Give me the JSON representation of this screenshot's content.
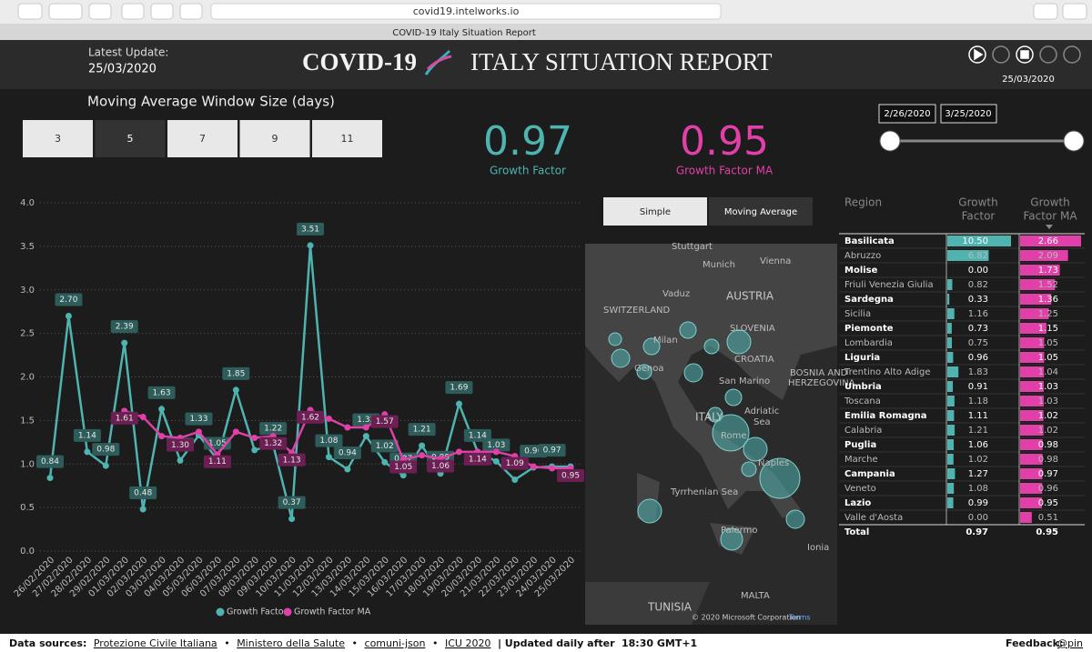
{
  "browser": {
    "url": "covid19.intelworks.io",
    "tab": "COVID-19 Italy Situation Report"
  },
  "header": {
    "update_label": "Latest Update:",
    "update_date": "25/03/2020",
    "title_left": "COVID-19",
    "title_right": "ITALY SITUATION REPORT",
    "play_date": "25/03/2020"
  },
  "controls": {
    "window_title": "Moving Average Window Size (days)",
    "window_options": [
      "3",
      "5",
      "7",
      "9",
      "11"
    ],
    "selected": 1
  },
  "kpis": [
    {
      "value": "0.97",
      "label": "Growth Factor"
    },
    {
      "value": "0.95",
      "label": "Growth Factor MA"
    }
  ],
  "date_range": {
    "start": "2/26/2020",
    "end": "3/25/2020"
  },
  "chart": {
    "type": "line",
    "categories": [
      "26/02/2020",
      "27/02/2020",
      "28/02/2020",
      "29/02/2020",
      "01/03/2020",
      "02/03/2020",
      "03/03/2020",
      "04/03/2020",
      "05/03/2020",
      "06/03/2020",
      "07/03/2020",
      "08/03/2020",
      "09/03/2020",
      "10/03/2020",
      "11/03/2020",
      "12/03/2020",
      "13/03/2020",
      "14/03/2020",
      "15/03/2020",
      "16/03/2020",
      "17/03/2020",
      "18/03/2020",
      "19/03/2020",
      "20/03/2020",
      "21/03/2020",
      "22/03/2020",
      "23/03/2020",
      "24/03/2020",
      "25/03/2020"
    ],
    "series": [
      {
        "name": "Growth Factor",
        "color": "#4fb3b0",
        "values": [
          0.84,
          2.7,
          1.14,
          0.98,
          2.39,
          0.48,
          1.63,
          1.04,
          1.33,
          1.05,
          1.85,
          1.16,
          1.22,
          0.37,
          3.51,
          1.08,
          0.94,
          1.32,
          1.02,
          0.87,
          1.21,
          0.89,
          1.69,
          1.14,
          1.03,
          0.82,
          0.96,
          0.97,
          0.97
        ],
        "value_labels": [
          "0.84",
          "2.70",
          "1.14",
          "0.98",
          "2.39",
          "0.48",
          "1.63",
          "1.04",
          "1.33",
          "1.05",
          "1.85",
          null,
          "1.22",
          "0.37",
          "3.51",
          "1.08",
          "0.94",
          "1.32",
          "1.02",
          "0.87",
          "1.21",
          "0.89",
          "1.69",
          "1.14",
          "1.03",
          "0.82",
          "0.96",
          "0.97",
          null
        ]
      },
      {
        "name": "Growth Factor MA",
        "color": "#e040a8",
        "values": [
          null,
          null,
          null,
          null,
          1.61,
          1.54,
          1.32,
          1.3,
          1.37,
          1.11,
          1.37,
          1.3,
          1.32,
          1.13,
          1.62,
          1.52,
          1.42,
          1.42,
          1.57,
          1.05,
          1.1,
          1.06,
          1.14,
          1.14,
          1.14,
          1.09,
          0.97,
          0.95,
          0.95
        ],
        "value_labels": [
          null,
          null,
          null,
          null,
          "1.61",
          null,
          null,
          "1.30",
          null,
          "1.11",
          null,
          null,
          "1.32",
          "1.13",
          "1.62",
          null,
          null,
          null,
          "1.57",
          "1.05",
          null,
          "1.06",
          null,
          "1.14",
          null,
          "1.09",
          null,
          null,
          "0.95"
        ]
      }
    ],
    "ylim": [
      0,
      4
    ],
    "yticks": [
      {
        "value": 0,
        "label": "0.0"
      },
      0.5,
      {
        "value": 1,
        "label": "1.0"
      },
      1.5,
      {
        "value": 2,
        "label": "2.0"
      },
      2.5,
      {
        "value": 3,
        "label": "3.0"
      },
      3.5,
      {
        "value": 4,
        "label": "4.0"
      }
    ],
    "grid": true
  },
  "map": {
    "toggle": [
      "Simple",
      "Moving Average"
    ],
    "labels": [
      "Stuttgart",
      "Munich",
      "Vienna",
      "Vaduz",
      "AUSTRIA",
      "SWITZERLAND",
      "SLOVENIA",
      "Milan",
      "CROATIA",
      "Genoa",
      "San Marino",
      "BOSNIA AND",
      "HERZEGOVINA",
      "ITALY",
      "Adriatic",
      "Sea",
      "Rome",
      "Naples",
      "Tyrrhenian Sea",
      "Palermo",
      "Ionia",
      "TUNISIA",
      "MALTA"
    ],
    "copyright": "© 2020 Microsoft Corporation",
    "terms": "Terms"
  },
  "table": {
    "columns": [
      "Region",
      [
        "Growth",
        "Factor"
      ],
      [
        "Growth",
        "Factor MA"
      ]
    ],
    "rows": [
      [
        "Basilicata",
        "10.50",
        "2.66"
      ],
      [
        "Abruzzo",
        "6.82",
        "2.09"
      ],
      [
        "Molise",
        "0.00",
        "1.73"
      ],
      [
        "Friuli Venezia Giulia",
        "0.82",
        "1.52"
      ],
      [
        "Sardegna",
        "0.33",
        "1.36"
      ],
      [
        "Sicilia",
        "1.16",
        "1.25"
      ],
      [
        "Piemonte",
        "0.73",
        "1.15"
      ],
      [
        "Lombardia",
        "0.75",
        "1.05"
      ],
      [
        "Liguria",
        "0.96",
        "1.05"
      ],
      [
        "Trentino Alto Adige",
        "1.83",
        "1.04"
      ],
      [
        "Umbria",
        "0.91",
        "1.03"
      ],
      [
        "Toscana",
        "1.18",
        "1.03"
      ],
      [
        "Emilia Romagna",
        "1.11",
        "1.02"
      ],
      [
        "Calabria",
        "1.21",
        "1.02"
      ],
      [
        "Puglia",
        "1.06",
        "0.98"
      ],
      [
        "Marche",
        "1.02",
        "0.98"
      ],
      [
        "Campania",
        "1.27",
        "0.97"
      ],
      [
        "Veneto",
        "1.08",
        "0.96"
      ],
      [
        "Lazio",
        "0.99",
        "0.95"
      ],
      [
        "Valle d'Aosta",
        "0.00",
        "0.51"
      ]
    ],
    "total": [
      "Total",
      "0.97",
      "0.95"
    ]
  },
  "footer": {
    "sources_label": "Data sources:",
    "sources": [
      "Protezione Civile Italiana",
      "Ministero della Salute",
      "comuni-json",
      "ICU 2020"
    ],
    "separator": "•",
    "updated": "| Updated daily after",
    "updated_time": "18:30 GMT+1",
    "feedback_label": "Feedback:",
    "feedback_handle": "@pin"
  }
}
